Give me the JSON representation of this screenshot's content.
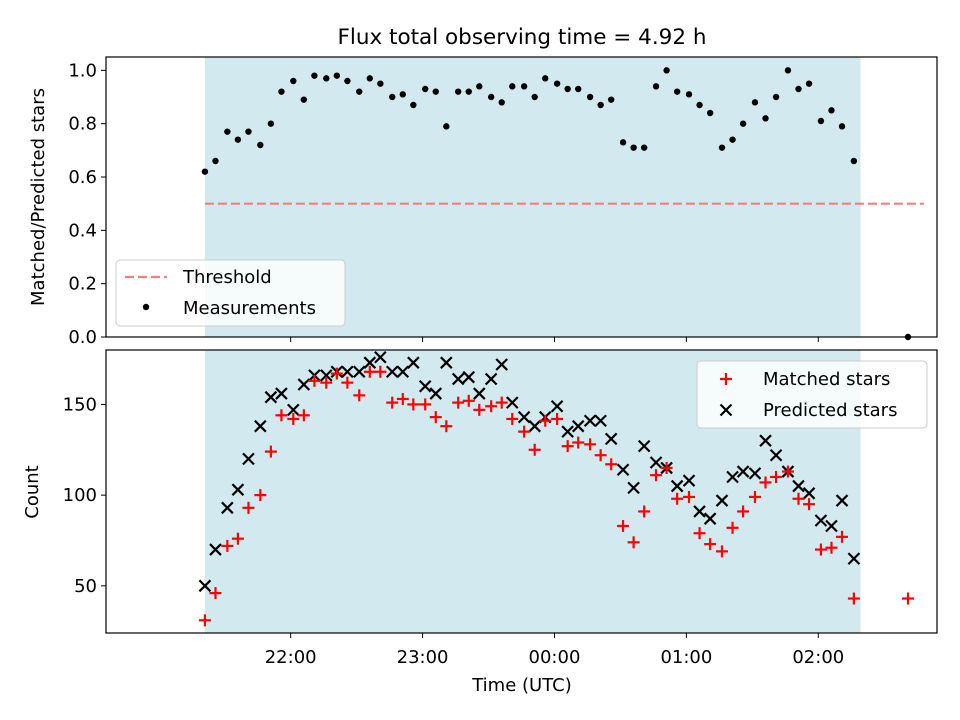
{
  "title": "Flux total observing time = 4.92 h",
  "x_label": "Time (UTC)",
  "x_ticks": [
    "22:00",
    "23:00",
    "00:00",
    "01:00",
    "02:00"
  ],
  "colors": {
    "span": "#d3e9f0",
    "threshold": "#f08080",
    "measurements": "#000000",
    "matched": "#ff0000",
    "predicted": "#000000"
  },
  "chart_data": [
    {
      "type": "scatter",
      "ylabel": "Matched/Predicted stars",
      "xlim_hours": [
        20.6,
        26.9
      ],
      "ylim": [
        0,
        1.05
      ],
      "y_ticks": [
        0.0,
        0.2,
        0.4,
        0.6,
        0.8,
        1.0
      ],
      "observing_span_hours": [
        21.35,
        26.32
      ],
      "threshold": 0.5,
      "threshold_x_hours": [
        21.35,
        26.8
      ],
      "legend": {
        "position": "lower-left",
        "entries": [
          "Threshold",
          "Measurements"
        ]
      },
      "measurements": {
        "x_hours": [
          21.35,
          21.43,
          21.52,
          21.6,
          21.68,
          21.77,
          21.85,
          21.93,
          22.02,
          22.1,
          22.18,
          22.27,
          22.35,
          22.43,
          22.52,
          22.6,
          22.68,
          22.77,
          22.85,
          22.93,
          23.02,
          23.1,
          23.18,
          23.27,
          23.35,
          23.43,
          23.52,
          23.6,
          23.68,
          23.77,
          23.85,
          23.93,
          24.02,
          24.1,
          24.18,
          24.27,
          24.35,
          24.43,
          24.52,
          24.6,
          24.68,
          24.77,
          24.85,
          24.93,
          25.02,
          25.1,
          25.18,
          25.27,
          25.35,
          25.43,
          25.52,
          25.6,
          25.68,
          25.77,
          25.85,
          25.93,
          26.02,
          26.1,
          26.18,
          26.27,
          26.68
        ],
        "y": [
          0.62,
          0.66,
          0.77,
          0.74,
          0.77,
          0.72,
          0.8,
          0.92,
          0.96,
          0.89,
          0.98,
          0.97,
          0.98,
          0.96,
          0.92,
          0.97,
          0.95,
          0.9,
          0.91,
          0.87,
          0.93,
          0.92,
          0.79,
          0.92,
          0.92,
          0.94,
          0.9,
          0.88,
          0.94,
          0.94,
          0.9,
          0.97,
          0.95,
          0.93,
          0.93,
          0.9,
          0.87,
          0.89,
          0.73,
          0.71,
          0.71,
          0.94,
          1.0,
          0.92,
          0.91,
          0.87,
          0.84,
          0.71,
          0.74,
          0.8,
          0.88,
          0.82,
          0.9,
          1.0,
          0.93,
          0.95,
          0.81,
          0.85,
          0.79,
          0.66,
          0.0
        ]
      }
    },
    {
      "type": "scatter",
      "ylabel": "Count",
      "xlim_hours": [
        20.6,
        26.9
      ],
      "ylim": [
        24,
        180
      ],
      "y_ticks": [
        50,
        100,
        150
      ],
      "observing_span_hours": [
        21.35,
        26.32
      ],
      "legend": {
        "position": "upper-right",
        "entries": [
          "Matched stars",
          "Predicted stars"
        ]
      },
      "series": [
        {
          "name": "Matched stars",
          "marker": "+",
          "x_hours": [
            21.35,
            21.43,
            21.52,
            21.6,
            21.68,
            21.77,
            21.85,
            21.93,
            22.02,
            22.1,
            22.18,
            22.27,
            22.35,
            22.43,
            22.52,
            22.6,
            22.68,
            22.77,
            22.85,
            22.93,
            23.02,
            23.1,
            23.18,
            23.27,
            23.35,
            23.43,
            23.52,
            23.6,
            23.68,
            23.77,
            23.85,
            23.93,
            24.02,
            24.1,
            24.18,
            24.27,
            24.35,
            24.43,
            24.52,
            24.6,
            24.68,
            24.77,
            24.85,
            24.93,
            25.02,
            25.1,
            25.18,
            25.27,
            25.35,
            25.43,
            25.52,
            25.6,
            25.68,
            25.77,
            25.85,
            25.93,
            26.02,
            26.1,
            26.18,
            26.27,
            26.68
          ],
          "values": [
            31,
            46,
            72,
            76,
            93,
            100,
            124,
            144,
            142,
            144,
            163,
            162,
            167,
            162,
            155,
            168,
            168,
            151,
            153,
            150,
            150,
            143,
            138,
            151,
            152,
            147,
            149,
            151,
            142,
            135,
            125,
            141,
            142,
            127,
            129,
            128,
            122,
            117,
            83,
            74,
            91,
            111,
            115,
            98,
            99,
            79,
            73,
            69,
            82,
            91,
            99,
            107,
            110,
            113,
            98,
            95,
            70,
            71,
            77,
            43,
            43
          ]
        },
        {
          "name": "Predicted stars",
          "marker": "x",
          "x_hours": [
            21.35,
            21.43,
            21.52,
            21.6,
            21.68,
            21.77,
            21.85,
            21.93,
            22.02,
            22.1,
            22.18,
            22.27,
            22.35,
            22.43,
            22.52,
            22.6,
            22.68,
            22.77,
            22.85,
            22.93,
            23.02,
            23.1,
            23.18,
            23.27,
            23.35,
            23.43,
            23.52,
            23.6,
            23.68,
            23.77,
            23.85,
            23.93,
            24.02,
            24.1,
            24.18,
            24.27,
            24.35,
            24.43,
            24.52,
            24.6,
            24.68,
            24.77,
            24.85,
            24.93,
            25.02,
            25.1,
            25.18,
            25.27,
            25.35,
            25.43,
            25.52,
            25.6,
            25.68,
            25.77,
            25.85,
            25.93,
            26.02,
            26.1,
            26.18,
            26.27
          ],
          "values": [
            50,
            70,
            93,
            103,
            120,
            138,
            154,
            156,
            147,
            161,
            166,
            166,
            168,
            168,
            168,
            173,
            176,
            168,
            168,
            173,
            160,
            156,
            173,
            164,
            165,
            156,
            164,
            172,
            151,
            143,
            138,
            143,
            149,
            135,
            138,
            141,
            141,
            131,
            114,
            104,
            127,
            118,
            115,
            105,
            108,
            91,
            87,
            97,
            110,
            113,
            112,
            130,
            122,
            113,
            105,
            101,
            86,
            83,
            97,
            65
          ]
        }
      ]
    }
  ]
}
